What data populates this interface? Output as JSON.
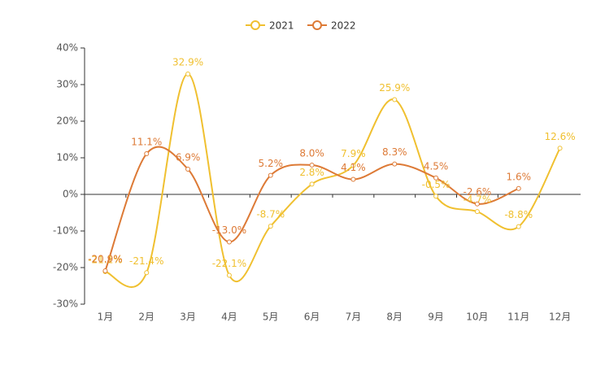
{
  "chart_data": {
    "type": "line",
    "categories": [
      "1月",
      "2月",
      "3月",
      "4月",
      "5月",
      "6月",
      "7月",
      "8月",
      "9月",
      "10月",
      "11月",
      "12月"
    ],
    "series": [
      {
        "name": "2021",
        "color": "#f0c030",
        "values": [
          -21.1,
          -21.4,
          32.9,
          -22.1,
          -8.7,
          2.8,
          7.9,
          25.9,
          -0.5,
          -4.7,
          -8.8,
          12.6
        ],
        "value_labels": [
          "-21.1%",
          "-21.4%",
          "32.9%",
          "-22.1%",
          "-8.7%",
          "2.8%",
          "7.9%",
          "25.9%",
          "-0.5%",
          "-4.7%",
          "-8.8%",
          "12.6%"
        ]
      },
      {
        "name": "2022",
        "color": "#dd7a36",
        "values": [
          -20.9,
          11.1,
          6.9,
          -13.0,
          5.2,
          8.0,
          4.1,
          8.3,
          4.5,
          -2.6,
          1.6,
          null
        ],
        "value_labels": [
          "-20.9%",
          "11.1%",
          "6.9%",
          "-13.0%",
          "5.2%",
          "8.0%",
          "4.1%",
          "8.3%",
          "4.5%",
          "-2.6%",
          "1.6%",
          null
        ]
      }
    ],
    "ylim": [
      -30,
      40
    ],
    "yticks": [
      {
        "value": -30,
        "label": "-30%"
      },
      {
        "value": -20,
        "label": "-20%"
      },
      {
        "value": -10,
        "label": "-10%"
      },
      {
        "value": 0,
        "label": "0%"
      },
      {
        "value": 10,
        "label": "10%"
      },
      {
        "value": 20,
        "label": "20%"
      },
      {
        "value": 30,
        "label": "30%"
      },
      {
        "value": 40,
        "label": "40%"
      }
    ],
    "legend": "top"
  }
}
